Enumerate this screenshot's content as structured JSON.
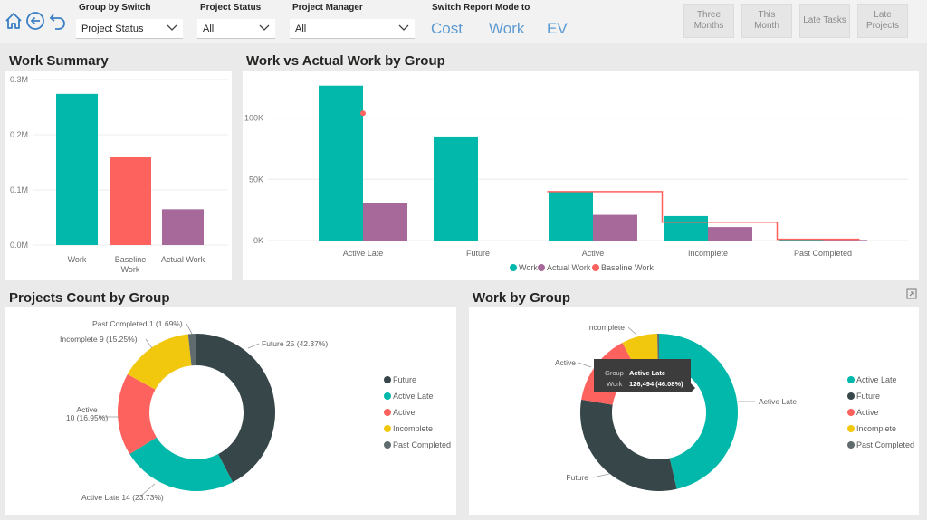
{
  "nav": {
    "home_icon": "home-icon",
    "back_icon": "back-circle-icon",
    "undo_icon": "undo-icon"
  },
  "filters": [
    {
      "label": "Group by Switch",
      "value": "Project Status"
    },
    {
      "label": "Project Status",
      "value": "All"
    },
    {
      "label": "Project Manager",
      "value": "All"
    }
  ],
  "switch_mode": {
    "label": "Switch Report Mode to",
    "options": [
      "Cost",
      "Work",
      "EV"
    ]
  },
  "quick_buttons": [
    "Three\nMonths",
    "This\nMonth",
    "Late Tasks",
    "Late\nProjects"
  ],
  "colors": {
    "teal": "#01b8aa",
    "red": "#fd625e",
    "purple": "#a66999",
    "dark": "#374649",
    "yellow": "#f2c80f",
    "slate": "#5f6b6d",
    "link": "#5c9bd1"
  },
  "work_summary": {
    "title": "Work Summary",
    "chart_data": {
      "type": "bar",
      "categories": [
        "Work",
        "Baseline\nWork",
        "Actual Work"
      ],
      "values": [
        0.274,
        0.159,
        0.065
      ],
      "unit": "M",
      "ylim": [
        0,
        0.3
      ],
      "yticks": [
        "0.0M",
        "0.1M",
        "0.2M",
        "0.3M"
      ],
      "grid": true
    }
  },
  "work_vs_actual": {
    "title": "Work vs Actual Work by Group",
    "chart_data": {
      "type": "bar",
      "categories": [
        "Active Late",
        "Future",
        "Active",
        "Incomplete",
        "Past Completed"
      ],
      "series": [
        {
          "name": "Work",
          "values": [
            126494,
            85000,
            40000,
            20000,
            1000
          ]
        },
        {
          "name": "Actual Work",
          "values": [
            31000,
            0,
            21000,
            11000,
            500
          ]
        },
        {
          "name": "Baseline Work",
          "values": [
            null,
            null,
            40000,
            15000,
            1000
          ]
        }
      ],
      "baseline_marker": {
        "category": "Active Late",
        "value": 104000
      },
      "ylim": [
        0,
        130000
      ],
      "yticks": [
        "0K",
        "50K",
        "100K"
      ],
      "legend": "bottom",
      "grid": true
    }
  },
  "projects_count": {
    "title": "Projects Count by Group",
    "chart_data": {
      "type": "pie",
      "donut": true,
      "slices": [
        {
          "name": "Future",
          "value": 25,
          "label": "Future 25 (42.37%)"
        },
        {
          "name": "Active Late",
          "value": 14,
          "label": "Active Late 14 (23.73%)"
        },
        {
          "name": "Active",
          "value": 10,
          "label": "Active\n10 (16.95%)"
        },
        {
          "name": "Incomplete",
          "value": 9,
          "label": "Incomplete 9 (15.25%)"
        },
        {
          "name": "Past Completed",
          "value": 1,
          "label": "Past Completed 1 (1.69%)"
        }
      ],
      "legend": [
        "Future",
        "Active Late",
        "Active",
        "Incomplete",
        "Past Completed"
      ]
    }
  },
  "work_by_group": {
    "title": "Work by Group",
    "chart_data": {
      "type": "pie",
      "donut": true,
      "slices": [
        {
          "name": "Active Late",
          "value": 46.08,
          "label": "Active Late"
        },
        {
          "name": "Future",
          "value": 31.0,
          "label": "Future"
        },
        {
          "name": "Active",
          "value": 14.6,
          "label": "Active"
        },
        {
          "name": "Incomplete",
          "value": 7.3,
          "label": "Incomplete"
        },
        {
          "name": "Past Completed",
          "value": 0.36,
          "label": ""
        }
      ],
      "legend": [
        "Active Late",
        "Future",
        "Active",
        "Incomplete",
        "Past Completed"
      ],
      "tooltip": {
        "group_label": "Group",
        "group_value": "Active Late",
        "work_label": "Work",
        "work_value": "126,494 (46.08%)"
      }
    }
  }
}
